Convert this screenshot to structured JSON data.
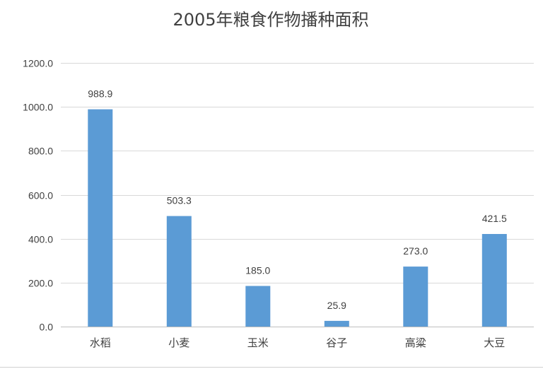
{
  "chart_data": {
    "type": "bar",
    "title": "2005年粮食作物播种面积",
    "categories": [
      "水稻",
      "小麦",
      "玉米",
      "谷子",
      "高粱",
      "大豆"
    ],
    "values": [
      988.9,
      503.3,
      185.0,
      25.9,
      273.0,
      421.5
    ],
    "value_labels": [
      "988.9",
      "503.3",
      "185.0",
      "25.9",
      "273.0",
      "421.5"
    ],
    "ylim": [
      0,
      1200
    ],
    "yticks": [
      "0.0",
      "200.0",
      "400.0",
      "600.0",
      "800.0",
      "1000.0",
      "1200.0"
    ],
    "grid": true,
    "legend": "none",
    "colors": {
      "bar": "#5b9bd5"
    }
  }
}
